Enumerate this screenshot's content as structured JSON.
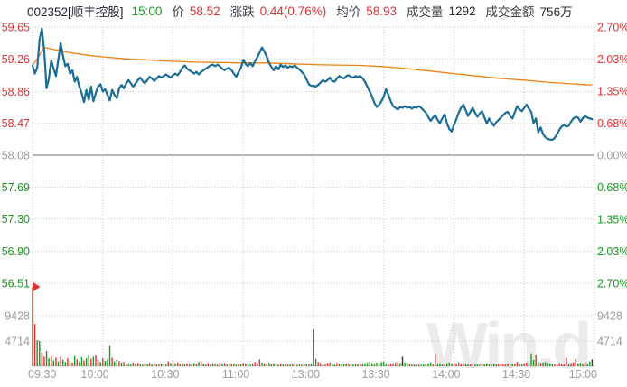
{
  "header": {
    "code_name": "002352[顺丰控股]",
    "time": "15:00",
    "price_label": "价",
    "price": "58.52",
    "change_label": "涨跌",
    "change": "0.44(0.76%)",
    "avg_label": "均价",
    "avg_price": "58.93",
    "volume_label": "成交量",
    "volume": "1292",
    "turnover_label": "成交金额",
    "turnover": "756万"
  },
  "watermark": "Win.d",
  "colors": {
    "up": "#e03233",
    "down": "#16991d",
    "neutral": "#9c9c9c",
    "price_line": "#1a6d96",
    "avg_line": "#ee8012",
    "grid": "#c5c5c5",
    "prev_close_line": "#b8b8b8",
    "black_bar": "#333333"
  },
  "chart_data": {
    "type": "line",
    "title": "002352 顺丰控股 intraday price / volume",
    "prev_close": 58.08,
    "minutes": 240,
    "y_range": [
      56.51,
      59.65
    ],
    "left_axis_prices": [
      "59.65",
      "59.26",
      "58.86",
      "58.47",
      "58.08",
      "57.69",
      "57.30",
      "56.90",
      "56.51"
    ],
    "right_axis_pct": [
      "2.70%",
      "2.03%",
      "1.35%",
      "0.68%",
      "0.00%",
      "0.68%",
      "1.35%",
      "2.03%",
      "2.70%"
    ],
    "volume_axis": [
      "9428",
      "4714"
    ],
    "x_ticks": [
      {
        "label": "09:30",
        "m": 0
      },
      {
        "label": "10:00",
        "m": 30
      },
      {
        "label": "10:30",
        "m": 60
      },
      {
        "label": "11:00",
        "m": 90
      },
      {
        "label": "13:00",
        "m": 120
      },
      {
        "label": "13:30",
        "m": 150
      },
      {
        "label": "14:00",
        "m": 180
      },
      {
        "label": "14:30",
        "m": 210
      },
      {
        "label": "15:00",
        "m": 240
      }
    ],
    "series": [
      {
        "name": "price",
        "values": [
          59.18,
          59.08,
          59.15,
          59.5,
          59.63,
          59.35,
          58.9,
          59.02,
          59.24,
          59.14,
          59.05,
          59.25,
          59.45,
          59.3,
          59.17,
          59.2,
          59.08,
          59.12,
          58.98,
          59.04,
          58.92,
          58.84,
          58.73,
          58.88,
          58.76,
          58.92,
          58.74,
          58.84,
          58.92,
          58.95,
          58.86,
          58.89,
          58.82,
          58.75,
          58.88,
          58.82,
          58.78,
          58.9,
          58.94,
          58.9,
          58.96,
          59.0,
          58.96,
          58.92,
          58.96,
          59.0,
          59.03,
          58.99,
          58.96,
          59.0,
          59.04,
          59.02,
          58.99,
          59.02,
          59.05,
          59.03,
          59.05,
          59.07,
          59.05,
          59.03,
          59.06,
          59.08,
          59.06,
          59.1,
          59.15,
          59.18,
          59.14,
          59.12,
          59.1,
          59.08,
          59.1,
          59.07,
          59.1,
          59.12,
          59.14,
          59.16,
          59.18,
          59.19,
          59.17,
          59.19,
          59.17,
          59.14,
          59.12,
          59.14,
          59.15,
          59.12,
          59.08,
          59.04,
          59.1,
          59.15,
          59.25,
          59.2,
          59.17,
          59.21,
          59.17,
          59.23,
          59.28,
          59.34,
          59.4,
          59.35,
          59.29,
          59.21,
          59.16,
          59.12,
          59.17,
          59.13,
          59.19,
          59.16,
          59.18,
          59.15,
          59.17,
          59.16,
          59.18,
          59.15,
          59.13,
          59.1,
          59.07,
          59.01,
          58.95,
          58.93,
          58.93,
          58.92,
          58.94,
          58.97,
          59.0,
          58.98,
          59.0,
          59.03,
          58.99,
          58.98,
          59.02,
          59.05,
          59.03,
          59.02,
          59.05,
          59.06,
          59.04,
          59.03,
          59.05,
          59.04,
          59.05,
          59.02,
          58.98,
          58.92,
          58.86,
          58.8,
          58.72,
          58.67,
          58.7,
          58.74,
          58.8,
          58.89,
          58.82,
          58.74,
          58.68,
          58.66,
          58.64,
          58.67,
          58.66,
          58.68,
          58.66,
          58.67,
          58.65,
          58.67,
          58.66,
          58.68,
          58.66,
          58.63,
          58.6,
          58.55,
          58.5,
          58.54,
          58.57,
          58.51,
          58.47,
          58.53,
          58.58,
          58.47,
          58.4,
          58.37,
          58.45,
          58.52,
          58.6,
          58.66,
          58.7,
          58.63,
          58.56,
          58.61,
          58.66,
          58.6,
          58.55,
          58.59,
          58.62,
          58.54,
          58.47,
          58.53,
          58.48,
          58.44,
          58.48,
          58.51,
          58.54,
          58.57,
          58.6,
          58.61,
          58.56,
          58.53,
          58.61,
          58.68,
          58.64,
          58.62,
          58.66,
          58.7,
          58.65,
          58.61,
          58.47,
          58.53,
          58.36,
          58.42,
          58.34,
          58.3,
          58.28,
          58.27,
          58.27,
          58.29,
          58.34,
          58.39,
          58.43,
          58.45,
          58.43,
          58.44,
          58.49,
          58.53,
          58.55,
          58.54,
          58.49,
          58.53,
          58.56,
          58.54,
          58.53,
          58.52
        ]
      },
      {
        "name": "avg_price",
        "points": [
          [
            0,
            59.18
          ],
          [
            2,
            59.26
          ],
          [
            5,
            59.4
          ],
          [
            10,
            59.37
          ],
          [
            15,
            59.34
          ],
          [
            20,
            59.32
          ],
          [
            25,
            59.3
          ],
          [
            30,
            59.285
          ],
          [
            40,
            59.26
          ],
          [
            50,
            59.245
          ],
          [
            60,
            59.23
          ],
          [
            70,
            59.22
          ],
          [
            80,
            59.215
          ],
          [
            90,
            59.21
          ],
          [
            100,
            59.21
          ],
          [
            110,
            59.2
          ],
          [
            120,
            59.19
          ],
          [
            130,
            59.185
          ],
          [
            140,
            59.18
          ],
          [
            150,
            59.165
          ],
          [
            160,
            59.14
          ],
          [
            170,
            59.11
          ],
          [
            180,
            59.08
          ],
          [
            190,
            59.05
          ],
          [
            200,
            59.02
          ],
          [
            210,
            59.0
          ],
          [
            220,
            58.975
          ],
          [
            230,
            58.955
          ],
          [
            239,
            58.94
          ]
        ]
      }
    ],
    "volume": {
      "values": [
        14800,
        7900,
        4900,
        4714,
        2600,
        1800,
        2900,
        1500,
        1900,
        1100,
        1600,
        900,
        1800,
        1200,
        800,
        1500,
        1000,
        700,
        1900,
        1300,
        900,
        1700,
        1100,
        1500,
        2000,
        1400,
        1800,
        2100,
        1200,
        800,
        1500,
        1000,
        1300,
        3900,
        1600,
        900,
        1200,
        1000,
        700,
        800,
        600,
        500,
        400,
        700,
        500,
        600,
        400,
        300,
        500,
        400,
        600,
        350,
        450,
        300,
        400,
        500,
        350,
        400,
        900,
        600,
        1100,
        500,
        700,
        400,
        600,
        350,
        500,
        450,
        300,
        600,
        400,
        800,
        1000,
        500,
        400,
        600,
        350,
        500,
        400,
        300,
        700,
        400,
        600,
        350,
        500,
        400,
        450,
        300,
        400,
        350,
        600,
        500,
        400,
        300,
        500,
        800,
        600,
        1300,
        700,
        500,
        400,
        600,
        350,
        500,
        400,
        300,
        450,
        350,
        400,
        300,
        350,
        400,
        300,
        250,
        400,
        300,
        350,
        450,
        400,
        500,
        6900,
        1400,
        800,
        600,
        500,
        400,
        600,
        700,
        500,
        400,
        600,
        500,
        400,
        350,
        500,
        450,
        400,
        300,
        400,
        350,
        400,
        500,
        600,
        700,
        800,
        600,
        500,
        700,
        600,
        800,
        900,
        500,
        400,
        500,
        600,
        700,
        800,
        600,
        1800,
        700,
        600,
        400,
        350,
        300,
        250,
        300,
        250,
        300,
        400,
        500,
        700,
        400,
        2400,
        500,
        600,
        400,
        500,
        600,
        700,
        500,
        600,
        500,
        700,
        500,
        600,
        500,
        400,
        350,
        400,
        300,
        350,
        300,
        400,
        350,
        500,
        400,
        300,
        450,
        350,
        400,
        500,
        450,
        400,
        500,
        350,
        400,
        500,
        800,
        400,
        350,
        500,
        700,
        600,
        2400,
        1200,
        2100,
        900,
        600,
        700,
        800,
        600,
        500,
        400,
        350,
        400,
        600,
        500,
        400,
        1600,
        500,
        600,
        700,
        1400,
        500,
        600,
        400,
        800,
        500,
        900,
        1292
      ],
      "colors": [
        "rrggrrggrg",
        "rgrggrgrgr",
        "ggrggrgrrg",
        "rgggrggrgr",
        "rggrgrggrg",
        "rgrgrgrgrg",
        "rgrgrgrgrg",
        "rgrgrrgrgr",
        "rgrgrgrgrg",
        "rrggrrrrgr",
        "ggrgrgrgrg",
        "rgrgrgrgrg",
        "kgrrgrrrgg",
        "rrggrrggrg",
        "rggggggggg",
        "ggrrrrrgkg",
        "grrggrgggg",
        "grrggrrggg",
        "rrrrrggrrg",
        "grrggrggrr",
        "rrrrggrrgg",
        "rrgggrgrgg",
        "gggrrrrrrg",
        "rrrggrrggk"
      ]
    }
  }
}
